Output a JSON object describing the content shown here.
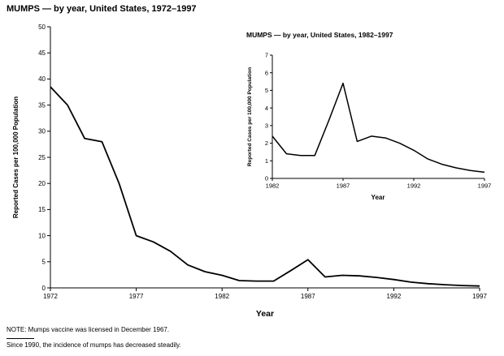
{
  "page": {
    "background": "#ffffff",
    "line_color": "#000000",
    "note1": "NOTE: Mumps vaccine was licensed in December 1967.",
    "note2": "Since 1990, the incidence of mumps has decreased steadily."
  },
  "chart_data": [
    {
      "id": "main",
      "type": "line",
      "title": "MUMPS — by year, United States, 1972–1997",
      "xlabel": "Year",
      "ylabel": "Reported Cases per 100,000 Population",
      "xlim": [
        1972,
        1997
      ],
      "ylim": [
        0,
        50
      ],
      "xticks": [
        1972,
        1977,
        1982,
        1987,
        1992,
        1997
      ],
      "yticks": [
        0,
        5,
        10,
        15,
        20,
        25,
        30,
        35,
        40,
        45,
        50
      ],
      "grid": false,
      "legend": "none",
      "x": [
        1972,
        1973,
        1974,
        1975,
        1976,
        1977,
        1978,
        1979,
        1980,
        1981,
        1982,
        1983,
        1984,
        1985,
        1986,
        1987,
        1988,
        1989,
        1990,
        1991,
        1992,
        1993,
        1994,
        1995,
        1996,
        1997
      ],
      "values": [
        38.5,
        35.0,
        28.6,
        28.0,
        20.0,
        10.0,
        8.8,
        7.0,
        4.4,
        3.1,
        2.4,
        1.4,
        1.3,
        1.3,
        3.3,
        5.4,
        2.1,
        2.4,
        2.3,
        2.0,
        1.6,
        1.1,
        0.8,
        0.6,
        0.45,
        0.35
      ]
    },
    {
      "id": "inset",
      "type": "line",
      "title": "MUMPS — by year, United States, 1982–1997",
      "xlabel": "Year",
      "ylabel": "Reported Cases per 100,000 Population",
      "xlim": [
        1982,
        1997
      ],
      "ylim": [
        0,
        7
      ],
      "xticks": [
        1982,
        1987,
        1992,
        1997
      ],
      "yticks": [
        0,
        1,
        2,
        3,
        4,
        5,
        6,
        7
      ],
      "grid": false,
      "legend": "none",
      "x": [
        1982,
        1983,
        1984,
        1985,
        1986,
        1987,
        1988,
        1989,
        1990,
        1991,
        1992,
        1993,
        1994,
        1995,
        1996,
        1997
      ],
      "values": [
        2.4,
        1.4,
        1.3,
        1.3,
        3.3,
        5.4,
        2.1,
        2.4,
        2.3,
        2.0,
        1.6,
        1.1,
        0.8,
        0.6,
        0.45,
        0.35
      ]
    }
  ]
}
